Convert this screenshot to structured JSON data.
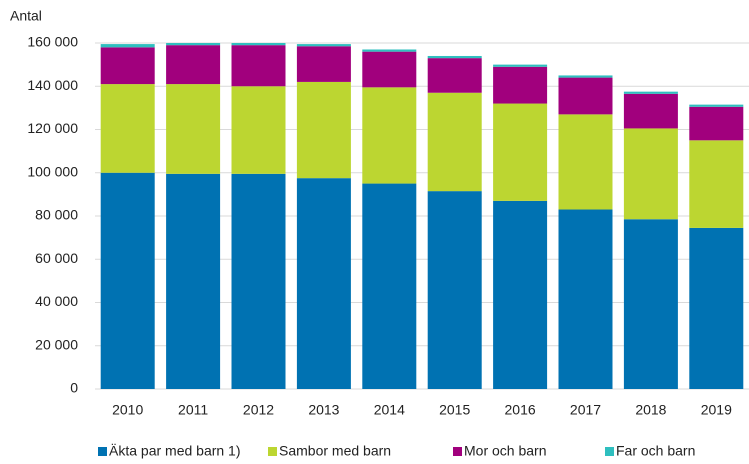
{
  "chart_data": {
    "type": "stacked_bar",
    "y_label": "Antal",
    "categories": [
      "2010",
      "2011",
      "2012",
      "2013",
      "2014",
      "2015",
      "2016",
      "2017",
      "2018",
      "2019"
    ],
    "series": [
      {
        "name": "Äkta par med barn 1)",
        "color": "#0072b2",
        "values": [
          100000,
          99500,
          99500,
          97500,
          95000,
          91500,
          87000,
          83000,
          78500,
          74500
        ]
      },
      {
        "name": "Sambor med barn",
        "color": "#bcd631",
        "values": [
          41000,
          41500,
          40500,
          44500,
          44500,
          45500,
          45000,
          44000,
          42000,
          40500
        ]
      },
      {
        "name": "Mor och barn",
        "color": "#a1007d",
        "values": [
          17000,
          18000,
          19000,
          16500,
          16500,
          16000,
          17000,
          17000,
          16000,
          15500
        ]
      },
      {
        "name": "Far och barn",
        "color": "#2fbfbf",
        "values": [
          1500,
          1000,
          1000,
          1000,
          1000,
          1000,
          1000,
          1000,
          1000,
          1000
        ]
      }
    ],
    "ylim": [
      0,
      160000
    ],
    "yticks": [
      0,
      {
        "value": 20000,
        "label": "20 000"
      },
      {
        "value": 40000,
        "label": "40 000"
      },
      {
        "value": 60000,
        "label": "60 000"
      },
      {
        "value": 80000,
        "label": "80 000"
      },
      {
        "value": 100000,
        "label": "100 000"
      },
      {
        "value": 120000,
        "label": "120 000"
      },
      {
        "value": 140000,
        "label": "140 000"
      },
      {
        "value": 160000,
        "label": "160 000"
      }
    ],
    "grid": true
  }
}
